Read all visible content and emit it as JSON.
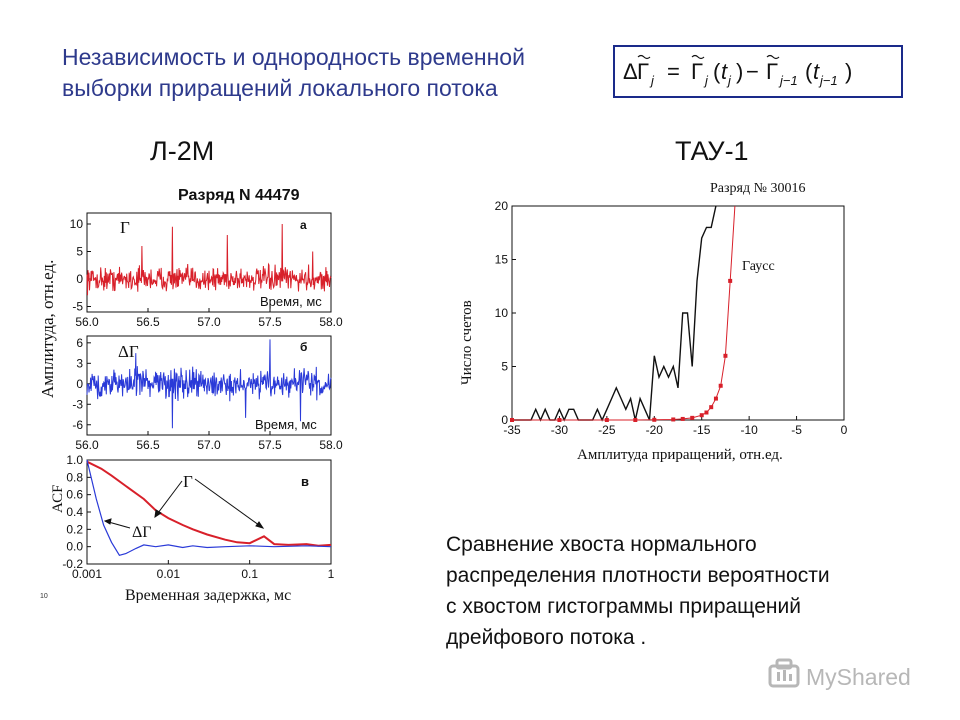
{
  "slide": {
    "title_line1": "Независимость и однородность временной",
    "title_line2": "выборки приращений  локального потока",
    "heading_left": "Л-2М",
    "heading_right": "ТАУ-1",
    "caption_lines": [
      "Сравнение хвоста нормального",
      "распределения плотности вероятности",
      "с хвостом гистограммы приращений",
      "дрейфового потока ."
    ],
    "watermark": "MyShared",
    "stray_label": "10"
  },
  "formula": {
    "delta": "Δ",
    "gamma": "Γ",
    "j": "j",
    "j_minus": "j−1",
    "t": "t",
    "equals": "=",
    "minus": "−",
    "lparen": "(",
    "rparen": ")"
  },
  "colors": {
    "red": "#d8202a",
    "blue": "#2a3ad8",
    "black": "#111111",
    "title": "#2e3a8c",
    "box": "#1a2a8a"
  },
  "chart_data": [
    {
      "type": "line",
      "title": "Разряд N 44479",
      "panel_label": "a",
      "series": [
        {
          "name": "Γ",
          "color": "#d8202a"
        }
      ],
      "xlabel": "Время, мс",
      "ylabel": "Амплитуда, отн.ед.",
      "xlim": [
        56.0,
        58.0
      ],
      "ylim": [
        -6,
        12
      ],
      "x_ticks": [
        "56.0",
        "56.5",
        "57.0",
        "57.5",
        "58.0"
      ],
      "y_ticks": [
        "10",
        "5",
        "0",
        "-5"
      ],
      "baseline": 0,
      "noise_sigma": 1.5,
      "spikes": [
        [
          56.7,
          9.5
        ],
        [
          57.15,
          8
        ],
        [
          57.6,
          10
        ],
        [
          56.45,
          6
        ],
        [
          57.85,
          5
        ]
      ]
    },
    {
      "type": "line",
      "panel_label": "б",
      "series": [
        {
          "name": "ΔΓ",
          "color": "#2a3ad8"
        }
      ],
      "xlabel": "Время, мс",
      "xlim": [
        56.0,
        58.0
      ],
      "ylim": [
        -7.5,
        7
      ],
      "x_ticks": [
        "56.0",
        "56.5",
        "57.0",
        "57.5",
        "58.0"
      ],
      "y_ticks": [
        "6",
        "3",
        "0",
        "-3",
        "-6"
      ],
      "baseline": 0,
      "noise_sigma": 1.4,
      "spikes": [
        [
          56.7,
          -6.5
        ],
        [
          57.5,
          6.5
        ],
        [
          57.3,
          -5
        ],
        [
          56.4,
          4.5
        ],
        [
          57.75,
          -5.5
        ]
      ]
    },
    {
      "type": "line",
      "panel_label": "в",
      "xlabel": "Временная задержка, мс",
      "ylabel": "АСF",
      "xscale": "log",
      "xlim": [
        0.001,
        1
      ],
      "ylim": [
        -0.2,
        1.0
      ],
      "x_ticks": [
        "0.001",
        "0.01",
        "0.1",
        "1"
      ],
      "y_ticks": [
        "1.0",
        "0.8",
        "0.6",
        "0.4",
        "0.2",
        "0.0",
        "-0.2"
      ],
      "series": [
        {
          "name": "Γ",
          "color": "#d8202a",
          "x": [
            0.001,
            0.0015,
            0.002,
            0.003,
            0.005,
            0.007,
            0.01,
            0.015,
            0.02,
            0.03,
            0.05,
            0.07,
            0.1,
            0.15,
            0.2,
            0.3,
            0.5,
            0.7,
            1.0
          ],
          "y": [
            0.98,
            0.9,
            0.82,
            0.7,
            0.55,
            0.42,
            0.33,
            0.25,
            0.2,
            0.14,
            0.08,
            0.05,
            0.04,
            0.12,
            0.03,
            0.02,
            0.03,
            0.01,
            0.02
          ]
        },
        {
          "name": "ΔΓ",
          "color": "#2a3ad8",
          "x": [
            0.001,
            0.0013,
            0.0016,
            0.002,
            0.0025,
            0.003,
            0.004,
            0.005,
            0.007,
            0.01,
            0.015,
            0.02,
            0.03,
            0.05,
            0.1,
            0.2,
            0.5,
            1.0
          ],
          "y": [
            1.0,
            0.55,
            0.25,
            0.05,
            -0.1,
            -0.08,
            -0.02,
            0.02,
            0.0,
            0.02,
            -0.01,
            0.01,
            -0.01,
            0.0,
            0.01,
            0.0,
            0.01,
            0.0
          ]
        }
      ]
    },
    {
      "type": "line",
      "title": "Разряд № 30016",
      "xlabel": "Амплитуда приращений, отн.ед.",
      "ylabel": "Число счетов",
      "xlim": [
        -35,
        0
      ],
      "ylim": [
        0,
        20
      ],
      "x_ticks": [
        "-35",
        "-30",
        "-25",
        "-20",
        "-15",
        "-10",
        "-5",
        "0"
      ],
      "y_ticks": [
        "20",
        "15",
        "10",
        "5",
        "0"
      ],
      "series": [
        {
          "name": "",
          "color": "#111111",
          "x": [
            -35,
            -33,
            -32.5,
            -32,
            -31.5,
            -31,
            -30.5,
            -30,
            -29.5,
            -29,
            -28.5,
            -28,
            -27.5,
            -27,
            -26.5,
            -26,
            -25.5,
            -25,
            -24.5,
            -24,
            -23.5,
            -23,
            -22.5,
            -22,
            -21.5,
            -21,
            -20.5,
            -20,
            -19.5,
            -19,
            -18.5,
            -18,
            -17.5,
            -17,
            -16.5,
            -16,
            -15.5,
            -15,
            -14.5,
            -14,
            -13.5
          ],
          "y": [
            0,
            0,
            1,
            0,
            1,
            0,
            0,
            1,
            0,
            1,
            1,
            0,
            0,
            0,
            0,
            1,
            0,
            1,
            2,
            3,
            2,
            1,
            2,
            0,
            2,
            1,
            0,
            6,
            4,
            5,
            4,
            5,
            3,
            10,
            10,
            5,
            13,
            17,
            18,
            18,
            21
          ]
        },
        {
          "name": "Гаусс",
          "color": "#d8202a",
          "x": [
            -35,
            -30,
            -25,
            -22,
            -20,
            -18,
            -17,
            -16,
            -15,
            -14.5,
            -14,
            -13.5,
            -13,
            -12.5,
            -12,
            -11.5
          ],
          "y": [
            0,
            0,
            0,
            0,
            0.02,
            0.05,
            0.1,
            0.2,
            0.45,
            0.7,
            1.2,
            2,
            3.2,
            6,
            13,
            22
          ]
        }
      ]
    }
  ]
}
